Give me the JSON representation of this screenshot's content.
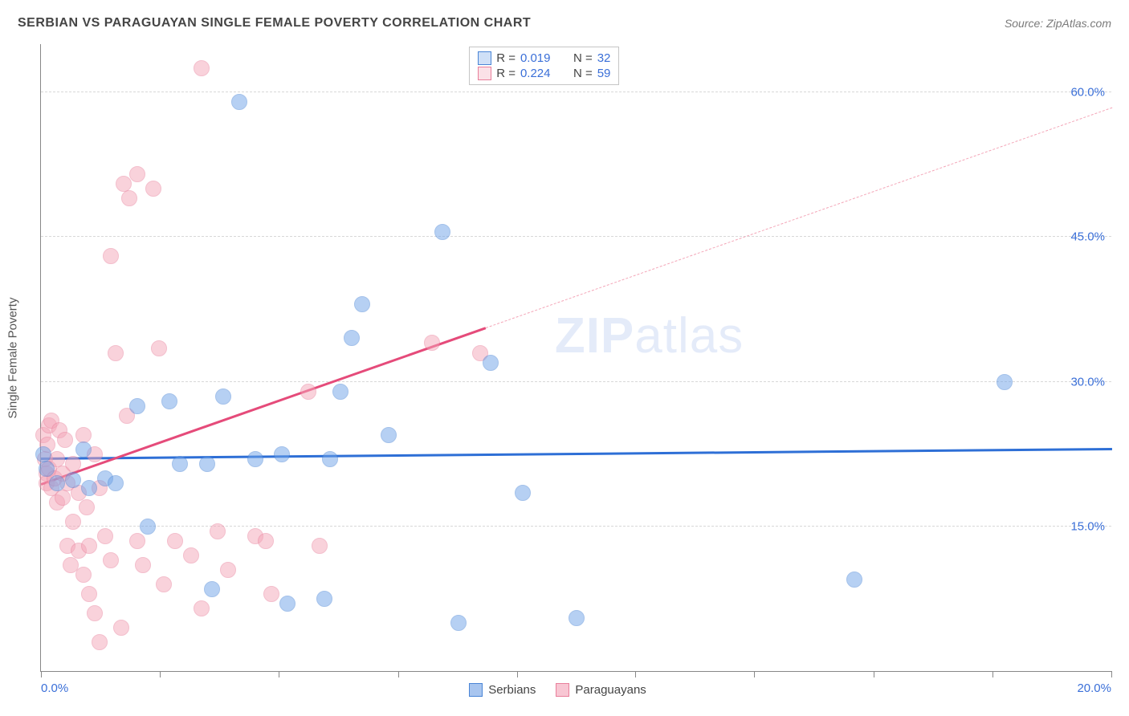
{
  "title": "SERBIAN VS PARAGUAYAN SINGLE FEMALE POVERTY CORRELATION CHART",
  "source": "Source: ZipAtlas.com",
  "watermark_zip": "ZIP",
  "watermark_atlas": "atlas",
  "y_axis_label": "Single Female Poverty",
  "chart": {
    "type": "scatter",
    "background_color": "#ffffff",
    "grid_color": "#d8d8d8",
    "axis_color": "#888888",
    "tick_label_color": "#3a6fd8",
    "axis_label_color": "#555555",
    "title_color": "#454545",
    "source_color": "#7a7a7a",
    "title_fontsize": 16,
    "label_fontsize": 15,
    "xlim": [
      0,
      20
    ],
    "ylim": [
      0,
      65
    ],
    "x_ticks": [
      0,
      2.22,
      4.44,
      6.67,
      8.89,
      11.11,
      13.33,
      15.56,
      17.78,
      20
    ],
    "x_tick_labels": {
      "0": "0.0%",
      "20": "20.0%"
    },
    "y_gridlines": [
      15,
      30,
      45,
      60
    ],
    "y_tick_labels": {
      "15": "15.0%",
      "30": "30.0%",
      "45": "45.0%",
      "60": "60.0%"
    },
    "marker_radius": 10,
    "marker_fill_opacity": 0.35,
    "marker_stroke_opacity": 0.8,
    "marker_stroke_width": 1.2,
    "series": [
      {
        "name": "Serbians",
        "color": "#6fa3e8",
        "stroke": "#4a85d6",
        "trend_color": "#2e6fd6",
        "r_value": "0.019",
        "n_value": "32",
        "trend": {
          "x1": 0,
          "y1": 22.2,
          "x2": 20,
          "y2": 23.2,
          "dash_after_x": null
        },
        "points": [
          [
            0.05,
            22.5
          ],
          [
            0.1,
            21.0
          ],
          [
            0.3,
            19.5
          ],
          [
            0.6,
            19.8
          ],
          [
            0.8,
            23.0
          ],
          [
            0.9,
            19.0
          ],
          [
            1.2,
            20.0
          ],
          [
            1.4,
            19.5
          ],
          [
            1.8,
            27.5
          ],
          [
            2.0,
            15.0
          ],
          [
            2.4,
            28.0
          ],
          [
            2.6,
            21.5
          ],
          [
            3.1,
            21.5
          ],
          [
            3.2,
            8.5
          ],
          [
            3.4,
            28.5
          ],
          [
            3.7,
            59.0
          ],
          [
            4.0,
            22.0
          ],
          [
            4.5,
            22.5
          ],
          [
            4.6,
            7.0
          ],
          [
            5.3,
            7.5
          ],
          [
            5.4,
            22.0
          ],
          [
            5.6,
            29.0
          ],
          [
            5.8,
            34.5
          ],
          [
            6.0,
            38.0
          ],
          [
            6.5,
            24.5
          ],
          [
            7.5,
            45.5
          ],
          [
            7.8,
            5.0
          ],
          [
            8.4,
            32.0
          ],
          [
            9.0,
            18.5
          ],
          [
            10.0,
            5.5
          ],
          [
            15.2,
            9.5
          ],
          [
            18.0,
            30.0
          ]
        ]
      },
      {
        "name": "Paraguayans",
        "color": "#f4a6b8",
        "stroke": "#e97f9b",
        "trend_color": "#e54b7a",
        "r_value": "0.224",
        "n_value": "59",
        "trend": {
          "x1": 0,
          "y1": 19.5,
          "x2": 20,
          "y2": 58.5,
          "dash_after_x": 8.3
        },
        "points": [
          [
            0.05,
            24.5
          ],
          [
            0.08,
            22.0
          ],
          [
            0.1,
            20.5
          ],
          [
            0.1,
            19.5
          ],
          [
            0.12,
            23.5
          ],
          [
            0.15,
            25.5
          ],
          [
            0.15,
            21.0
          ],
          [
            0.2,
            19.0
          ],
          [
            0.2,
            26.0
          ],
          [
            0.25,
            20.0
          ],
          [
            0.3,
            22.0
          ],
          [
            0.3,
            17.5
          ],
          [
            0.35,
            25.0
          ],
          [
            0.4,
            20.5
          ],
          [
            0.4,
            18.0
          ],
          [
            0.45,
            24.0
          ],
          [
            0.5,
            13.0
          ],
          [
            0.5,
            19.5
          ],
          [
            0.55,
            11.0
          ],
          [
            0.6,
            21.5
          ],
          [
            0.6,
            15.5
          ],
          [
            0.7,
            18.5
          ],
          [
            0.7,
            12.5
          ],
          [
            0.8,
            24.5
          ],
          [
            0.8,
            10.0
          ],
          [
            0.85,
            17.0
          ],
          [
            0.9,
            13.0
          ],
          [
            0.9,
            8.0
          ],
          [
            1.0,
            22.5
          ],
          [
            1.0,
            6.0
          ],
          [
            1.1,
            19.0
          ],
          [
            1.1,
            3.0
          ],
          [
            1.2,
            14.0
          ],
          [
            1.3,
            43.0
          ],
          [
            1.3,
            11.5
          ],
          [
            1.4,
            33.0
          ],
          [
            1.5,
            4.5
          ],
          [
            1.55,
            50.5
          ],
          [
            1.6,
            26.5
          ],
          [
            1.65,
            49.0
          ],
          [
            1.8,
            51.5
          ],
          [
            1.8,
            13.5
          ],
          [
            1.9,
            11.0
          ],
          [
            2.1,
            50.0
          ],
          [
            2.2,
            33.5
          ],
          [
            2.3,
            9.0
          ],
          [
            2.5,
            13.5
          ],
          [
            2.8,
            12.0
          ],
          [
            3.0,
            6.5
          ],
          [
            3.0,
            62.5
          ],
          [
            3.3,
            14.5
          ],
          [
            3.5,
            10.5
          ],
          [
            4.0,
            14.0
          ],
          [
            4.2,
            13.5
          ],
          [
            4.3,
            8.0
          ],
          [
            5.0,
            29.0
          ],
          [
            5.2,
            13.0
          ],
          [
            7.3,
            34.0
          ],
          [
            8.2,
            33.0
          ]
        ]
      }
    ]
  },
  "bottom_legend": [
    {
      "swatch_fill": "#a8c5ef",
      "swatch_border": "#4a85d6",
      "label": "Serbians"
    },
    {
      "swatch_fill": "#f8c6d3",
      "swatch_border": "#e97f9b",
      "label": "Paraguayans"
    }
  ]
}
